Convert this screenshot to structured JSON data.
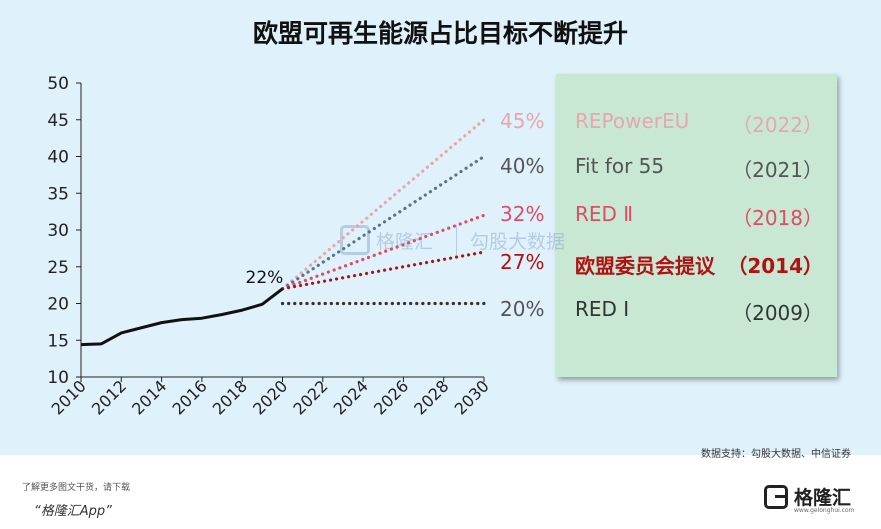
{
  "chart_data": {
    "type": "line",
    "title": "欧盟可再生能源占比目标不断提升",
    "x_ticks": [
      "2010",
      "2012",
      "2014",
      "2016",
      "2018",
      "2020",
      "2022",
      "2024",
      "2026",
      "2028",
      "2030"
    ],
    "y_ticks": [
      "10",
      "15",
      "20",
      "25",
      "30",
      "35",
      "40",
      "45",
      "50"
    ],
    "xlim": [
      2010,
      2030
    ],
    "ylim": [
      10,
      50
    ],
    "grid": false,
    "actual_series": {
      "x": [
        2010,
        2011,
        2012,
        2013,
        2014,
        2015,
        2016,
        2017,
        2018,
        2019,
        2020
      ],
      "y": [
        14.4,
        14.5,
        16.0,
        16.7,
        17.4,
        17.8,
        18.0,
        18.5,
        19.1,
        19.9,
        22.0
      ],
      "color": "#111111"
    },
    "point_label": "22%",
    "targets": [
      {
        "pct": "45%",
        "name": "REPowerEU",
        "year": "（2022）",
        "start": [
          2020,
          22
        ],
        "end": [
          2030,
          45
        ],
        "color": "#e9a6ac"
      },
      {
        "pct": "40%",
        "name": "Fit for 55",
        "year": "（2021）",
        "start": [
          2020,
          22
        ],
        "end": [
          2030,
          40
        ],
        "color": "#5b7486"
      },
      {
        "pct": "32%",
        "name": "RED Ⅱ",
        "year": "（2018）",
        "start": [
          2020,
          22
        ],
        "end": [
          2030,
          32
        ],
        "color": "#dd4d64"
      },
      {
        "pct": "27%",
        "name": "欧盟委员会提议",
        "year": "（2014）",
        "start": [
          2020,
          22
        ],
        "end": [
          2030,
          27
        ],
        "color": "#b01212"
      },
      {
        "pct": "20%",
        "name": "RED Ⅰ",
        "year": "（2009）",
        "start": [
          2020,
          20
        ],
        "end": [
          2030,
          20
        ],
        "color": "#333333"
      }
    ]
  },
  "legend_styles": [
    {
      "pct_color": "#e9a6ac",
      "text_color": "#e9a6ac",
      "bold": false
    },
    {
      "pct_color": "#555555",
      "text_color": "#555555",
      "bold": false
    },
    {
      "pct_color": "#dd4d64",
      "text_color": "#dd4d64",
      "bold": false
    },
    {
      "pct_color": "#b01212",
      "text_color": "#b01212",
      "bold": true
    },
    {
      "pct_color": "#555555",
      "text_color": "#333333",
      "bold": false
    }
  ],
  "watermark": {
    "brand": "格隆汇",
    "site": "勾股大数据"
  },
  "source": "数据支持：勾股大数据、中信证券",
  "footer": {
    "promo_line1": "了解更多图文干货，请下载",
    "promo_line2": "“格隆汇App”",
    "logo_text": "格隆汇",
    "logo_sub": "www.gelonghui.com"
  }
}
